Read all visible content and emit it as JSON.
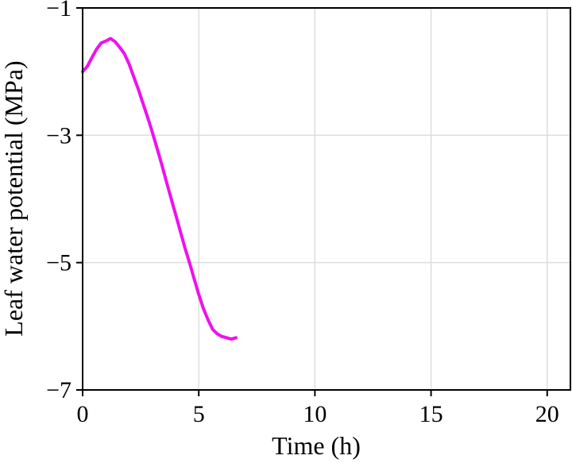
{
  "chart_data": {
    "type": "line",
    "title": "",
    "xlabel": "Time (h)",
    "ylabel": "Leaf water potential (MPa)",
    "xlim": [
      0,
      21
    ],
    "ylim": [
      -7,
      -1
    ],
    "xticks": [
      0,
      5,
      10,
      15,
      20
    ],
    "yticks": [
      -1,
      -3,
      -5,
      -7
    ],
    "xtick_labels": [
      "0",
      "5",
      "10",
      "15",
      "20"
    ],
    "ytick_labels": [
      "−1",
      "−3",
      "−5",
      "−7"
    ],
    "grid": true,
    "series": [
      {
        "color": "#ee11ee",
        "x": [
          0,
          0.2,
          0.4,
          0.6,
          0.8,
          1.0,
          1.2,
          1.4,
          1.6,
          1.8,
          2.0,
          2.2,
          2.4,
          2.6,
          2.8,
          3.0,
          3.2,
          3.4,
          3.6,
          3.8,
          4.0,
          4.2,
          4.4,
          4.6,
          4.8,
          5.0,
          5.2,
          5.4,
          5.6,
          5.8,
          6.0,
          6.2,
          6.4,
          6.6
        ],
        "y": [
          -2.0,
          -1.92,
          -1.78,
          -1.65,
          -1.55,
          -1.52,
          -1.48,
          -1.53,
          -1.62,
          -1.72,
          -1.88,
          -2.08,
          -2.28,
          -2.5,
          -2.72,
          -2.95,
          -3.2,
          -3.45,
          -3.72,
          -3.98,
          -4.24,
          -4.5,
          -4.76,
          -5.0,
          -5.25,
          -5.5,
          -5.72,
          -5.9,
          -6.05,
          -6.12,
          -6.16,
          -6.18,
          -6.2,
          -6.18
        ]
      }
    ]
  }
}
